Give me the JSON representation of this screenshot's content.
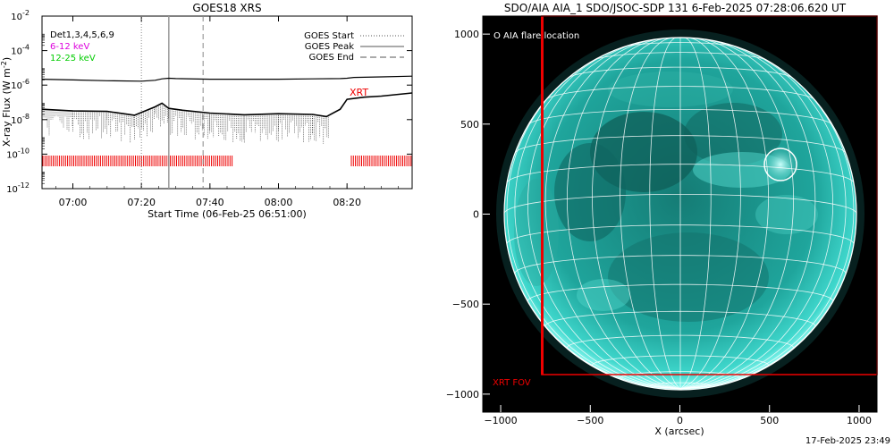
{
  "footer_timestamp": "17-Feb-2025 23:49",
  "colors": {
    "accent_red": "#ee0000",
    "magenta": "#dd00dd",
    "green": "#00cc00",
    "sun_disk": "#1fa59c",
    "sun_bright": "#6ff0e6",
    "plot_bg": "#000000"
  },
  "chart_data": [
    {
      "type": "line",
      "title": "GOES18 XRS",
      "xlabel": "Start Time (06-Feb-25 06:51:00)",
      "ylabel": "X-ray Flux (W m^-2)",
      "ylabel_parts": {
        "main": "X-ray Flux (W m",
        "sup": "-2",
        "close": ")"
      },
      "xlim": [
        "06:51",
        "08:39"
      ],
      "ylim": [
        1e-12,
        0.01
      ],
      "yscale": "log",
      "xticks": [
        "07:00",
        "07:20",
        "07:40",
        "08:00",
        "08:20"
      ],
      "yticks": [
        {
          "base": "10",
          "exp": "-2",
          "value": 0.01
        },
        {
          "base": "10",
          "exp": "-4",
          "value": 0.0001
        },
        {
          "base": "10",
          "exp": "-6",
          "value": 1e-06
        },
        {
          "base": "10",
          "exp": "-8",
          "value": 1e-08
        },
        {
          "base": "10",
          "exp": "-10",
          "value": 1e-10
        },
        {
          "base": "10",
          "exp": "-12",
          "value": 1e-12
        }
      ],
      "legend_left": [
        {
          "text": "Det1,3,4,5,6,9",
          "color": "#000000"
        },
        {
          "text": "6-12 keV",
          "color": "#dd00dd"
        },
        {
          "text": "12-25 keV",
          "color": "#00cc00"
        }
      ],
      "legend_right": [
        {
          "text": "GOES Start",
          "style": "dotted"
        },
        {
          "text": "GOES Peak",
          "style": "solid"
        },
        {
          "text": "GOES End",
          "style": "dashed"
        }
      ],
      "annotation_xrt": "XRT",
      "event_markers": {
        "start": "07:20",
        "peak": "07:28",
        "end": "07:38"
      },
      "xrt_coverage_intervals": [
        [
          "06:51",
          "07:47"
        ],
        [
          "08:21",
          "08:39"
        ]
      ],
      "series": [
        {
          "name": "",
          "style": "solid",
          "x": [
            "06:51",
            "07:00",
            "07:10",
            "07:20",
            "07:24",
            "07:26",
            "07:28",
            "07:30",
            "07:40",
            "07:50",
            "08:00",
            "08:10",
            "08:18",
            "08:20",
            "08:22",
            "08:30",
            "08:39"
          ],
          "y": [
            2.2e-06,
            2e-06,
            1.8e-06,
            1.7e-06,
            1.9e-06,
            2.3e-06,
            2.5e-06,
            2.4e-06,
            2.2e-06,
            2.2e-06,
            2.2e-06,
            2.3e-06,
            2.4e-06,
            2.5e-06,
            2.8e-06,
            3e-06,
            3.3e-06
          ]
        },
        {
          "name": "",
          "style": "dotted",
          "x": [
            "06:51",
            "07:00",
            "07:10",
            "07:18",
            "07:24",
            "07:26",
            "07:28",
            "07:32",
            "07:40",
            "07:50",
            "08:00",
            "08:10",
            "08:14",
            "08:18",
            "08:20",
            "08:25",
            "08:30",
            "08:39"
          ],
          "y": [
            4e-08,
            3.2e-08,
            3e-08,
            1.8e-08,
            5.5e-08,
            9e-08,
            4.5e-08,
            3.5e-08,
            2.4e-08,
            1.9e-08,
            2.2e-08,
            2e-08,
            1.5e-08,
            4e-08,
            1.5e-07,
            2e-07,
            2.3e-07,
            3.5e-07
          ]
        }
      ]
    },
    {
      "type": "heatmap",
      "title": "SDO/AIA AIA_1 SDO/JSOC-SDP 131  6-Feb-2025 07:28:06.620 UT",
      "xlabel": "X (arcsec)",
      "ylabel": "",
      "xlim": [
        -1100,
        1100
      ],
      "ylim": [
        -1100,
        1100
      ],
      "xticks": [
        "-1000",
        "-500",
        "0",
        "500",
        "1000"
      ],
      "yticks": [
        "1000",
        "500",
        "0",
        "-500",
        "-1000"
      ],
      "grid": true,
      "legend_text": "O AIA flare location",
      "flare_location": {
        "x": 580,
        "y": 270
      },
      "fov_label": "XRT FOV",
      "xrt_fov": {
        "x_min": -775,
        "x_max": 1100,
        "y_min": -880,
        "y_max": 1100
      }
    }
  ]
}
